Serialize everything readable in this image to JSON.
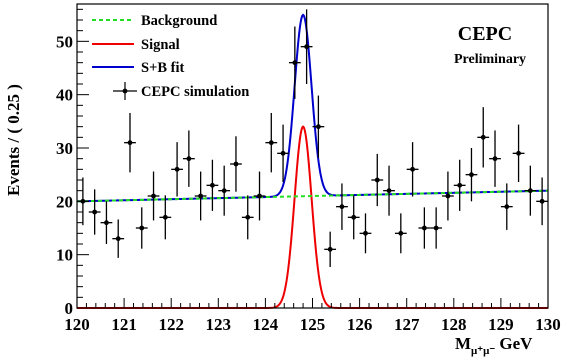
{
  "chart_data": {
    "type": "scatter",
    "experiment": "CEPC",
    "status": "Preliminary",
    "xlabel": {
      "main": "M",
      "sub": "μ⁺μ⁻",
      "unit": " GeV"
    },
    "ylabel": "Events / ( 0.25 )",
    "xlim": [
      120,
      130
    ],
    "ylim": [
      0,
      57
    ],
    "xticks": [
      "120",
      "121",
      "122",
      "123",
      "124",
      "125",
      "126",
      "127",
      "128",
      "129",
      "130"
    ],
    "xtick_values": [
      120,
      121,
      122,
      123,
      124,
      125,
      126,
      127,
      128,
      129,
      130
    ],
    "yticks": [
      "0",
      "10",
      "20",
      "30",
      "40",
      "50"
    ],
    "ytick_values": [
      0,
      10,
      20,
      30,
      40,
      50
    ],
    "legend": [
      {
        "label": "Background",
        "style": "dashed",
        "color": "#22dd22"
      },
      {
        "label": "Signal",
        "style": "solid",
        "color": "#ee0000"
      },
      {
        "label": "S+B fit",
        "style": "solid",
        "color": "#0000cc"
      },
      {
        "label": "CEPC simulation",
        "style": "marker",
        "color": "#000000"
      }
    ],
    "background": {
      "intercept_at_120": 20.0,
      "slope_per_gev": 0.2
    },
    "signal": {
      "mean": 124.8,
      "sigma": 0.18,
      "peak": 34
    },
    "points": [
      {
        "x": 120.125,
        "y": 20
      },
      {
        "x": 120.375,
        "y": 18
      },
      {
        "x": 120.625,
        "y": 16
      },
      {
        "x": 120.875,
        "y": 13
      },
      {
        "x": 121.125,
        "y": 31
      },
      {
        "x": 121.375,
        "y": 15
      },
      {
        "x": 121.625,
        "y": 21
      },
      {
        "x": 121.875,
        "y": 17
      },
      {
        "x": 122.125,
        "y": 26
      },
      {
        "x": 122.375,
        "y": 28
      },
      {
        "x": 122.625,
        "y": 21
      },
      {
        "x": 122.875,
        "y": 23
      },
      {
        "x": 123.125,
        "y": 22
      },
      {
        "x": 123.375,
        "y": 27
      },
      {
        "x": 123.625,
        "y": 17
      },
      {
        "x": 123.875,
        "y": 21
      },
      {
        "x": 124.125,
        "y": 31
      },
      {
        "x": 124.375,
        "y": 29
      },
      {
        "x": 124.625,
        "y": 46
      },
      {
        "x": 124.875,
        "y": 49
      },
      {
        "x": 125.125,
        "y": 34
      },
      {
        "x": 125.375,
        "y": 11
      },
      {
        "x": 125.625,
        "y": 19
      },
      {
        "x": 125.875,
        "y": 17
      },
      {
        "x": 126.125,
        "y": 14
      },
      {
        "x": 126.375,
        "y": 24
      },
      {
        "x": 126.625,
        "y": 22
      },
      {
        "x": 126.875,
        "y": 14
      },
      {
        "x": 127.125,
        "y": 26
      },
      {
        "x": 127.375,
        "y": 15
      },
      {
        "x": 127.625,
        "y": 15
      },
      {
        "x": 127.875,
        "y": 21
      },
      {
        "x": 128.125,
        "y": 23
      },
      {
        "x": 128.375,
        "y": 25
      },
      {
        "x": 128.625,
        "y": 32
      },
      {
        "x": 128.875,
        "y": 28
      },
      {
        "x": 129.125,
        "y": 19
      },
      {
        "x": 129.375,
        "y": 29
      },
      {
        "x": 129.625,
        "y": 22
      },
      {
        "x": 129.875,
        "y": 20
      }
    ]
  }
}
